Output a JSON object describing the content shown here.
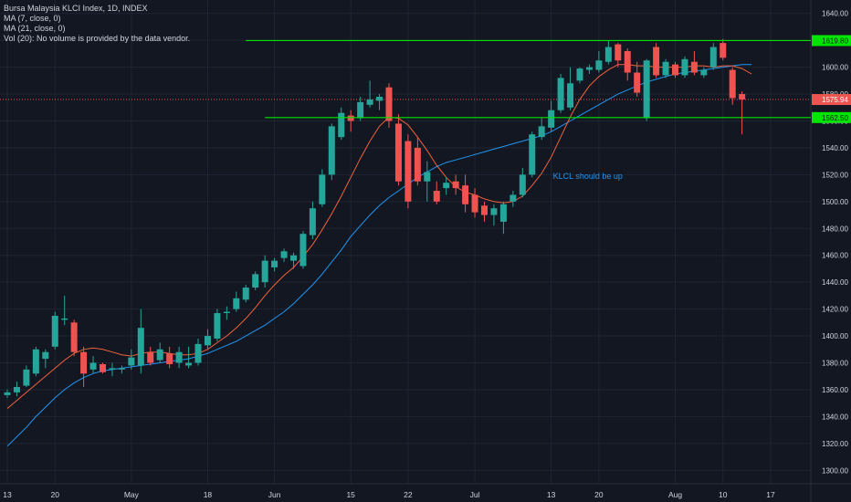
{
  "legend": {
    "title": "Bursa Malaysia KLCI Index, 1D, INDEX",
    "ma7": "MA (7, close, 0)",
    "ma21": "MA (21, close, 0)",
    "vol": "Vol (20): No volume is provided by the data vendor."
  },
  "colors": {
    "background": "#131722",
    "grid": "#1f2433",
    "up": "#26a69a",
    "down": "#ef5350",
    "ma7": "#f0623c",
    "ma21": "#2196f3",
    "level": "#00e600",
    "last_price_line": "#ef5350",
    "axis_text": "#d1d4dc",
    "annotation": "#2196f3"
  },
  "chart_data": {
    "type": "candlestick",
    "title": "Bursa Malaysia KLCI Index, 1D, INDEX",
    "ylim": [
      1290,
      1650
    ],
    "y_ticks": [
      "1300.00",
      "1320.00",
      "1340.00",
      "1360.00",
      "1380.00",
      "1400.00",
      "1420.00",
      "1440.00",
      "1460.00",
      "1480.00",
      "1500.00",
      "1520.00",
      "1540.00",
      "1560.00",
      "1580.00",
      "1600.00",
      "1620.00",
      "1640.00"
    ],
    "x_tick_labels": [
      "13",
      "20",
      "May",
      "18",
      "Jun",
      "15",
      "22",
      "Jul",
      "13",
      "20",
      "Aug",
      "10",
      "17"
    ],
    "x_tick_index": [
      0,
      5,
      13,
      21,
      28,
      36,
      42,
      49,
      57,
      62,
      70,
      75,
      80
    ],
    "horizontal_levels": [
      {
        "value": 1619.8,
        "label": "1619.80",
        "start_index": 25
      },
      {
        "value": 1562.5,
        "label": "1562.50",
        "start_index": 27
      }
    ],
    "last_price": {
      "value": 1575.94,
      "label": "1575.94"
    },
    "annotation": {
      "text": "KLCL should be up",
      "index": 57,
      "value": 1517
    },
    "candles": [
      {
        "o": 1356,
        "h": 1360,
        "l": 1354,
        "c": 1358
      },
      {
        "o": 1358,
        "h": 1366,
        "l": 1355,
        "c": 1362
      },
      {
        "o": 1363,
        "h": 1378,
        "l": 1362,
        "c": 1375
      },
      {
        "o": 1372,
        "h": 1392,
        "l": 1370,
        "c": 1390
      },
      {
        "o": 1383,
        "h": 1390,
        "l": 1376,
        "c": 1388
      },
      {
        "o": 1392,
        "h": 1418,
        "l": 1390,
        "c": 1415
      },
      {
        "o": 1412,
        "h": 1430,
        "l": 1408,
        "c": 1413
      },
      {
        "o": 1410,
        "h": 1412,
        "l": 1385,
        "c": 1388
      },
      {
        "o": 1388,
        "h": 1392,
        "l": 1362,
        "c": 1372
      },
      {
        "o": 1375,
        "h": 1385,
        "l": 1372,
        "c": 1380
      },
      {
        "o": 1379,
        "h": 1380,
        "l": 1372,
        "c": 1373
      },
      {
        "o": 1375,
        "h": 1380,
        "l": 1370,
        "c": 1376
      },
      {
        "o": 1375,
        "h": 1378,
        "l": 1372,
        "c": 1376
      },
      {
        "o": 1378,
        "h": 1390,
        "l": 1375,
        "c": 1384
      },
      {
        "o": 1378,
        "h": 1420,
        "l": 1372,
        "c": 1406
      },
      {
        "o": 1388,
        "h": 1392,
        "l": 1378,
        "c": 1380
      },
      {
        "o": 1382,
        "h": 1395,
        "l": 1380,
        "c": 1390
      },
      {
        "o": 1387,
        "h": 1392,
        "l": 1376,
        "c": 1379
      },
      {
        "o": 1380,
        "h": 1392,
        "l": 1376,
        "c": 1388
      },
      {
        "o": 1378,
        "h": 1392,
        "l": 1376,
        "c": 1380
      },
      {
        "o": 1380,
        "h": 1398,
        "l": 1378,
        "c": 1394
      },
      {
        "o": 1393,
        "h": 1405,
        "l": 1390,
        "c": 1400
      },
      {
        "o": 1398,
        "h": 1420,
        "l": 1396,
        "c": 1417
      },
      {
        "o": 1417,
        "h": 1422,
        "l": 1412,
        "c": 1418
      },
      {
        "o": 1420,
        "h": 1433,
        "l": 1418,
        "c": 1428
      },
      {
        "o": 1427,
        "h": 1438,
        "l": 1425,
        "c": 1436
      },
      {
        "o": 1436,
        "h": 1448,
        "l": 1434,
        "c": 1446
      },
      {
        "o": 1440,
        "h": 1460,
        "l": 1436,
        "c": 1456
      },
      {
        "o": 1451,
        "h": 1458,
        "l": 1448,
        "c": 1456
      },
      {
        "o": 1458,
        "h": 1465,
        "l": 1455,
        "c": 1463
      },
      {
        "o": 1456,
        "h": 1462,
        "l": 1450,
        "c": 1460
      },
      {
        "o": 1452,
        "h": 1478,
        "l": 1450,
        "c": 1476
      },
      {
        "o": 1475,
        "h": 1500,
        "l": 1472,
        "c": 1495
      },
      {
        "o": 1498,
        "h": 1524,
        "l": 1496,
        "c": 1520
      },
      {
        "o": 1520,
        "h": 1558,
        "l": 1516,
        "c": 1556
      },
      {
        "o": 1548,
        "h": 1570,
        "l": 1546,
        "c": 1566
      },
      {
        "o": 1564,
        "h": 1568,
        "l": 1552,
        "c": 1560
      },
      {
        "o": 1562,
        "h": 1578,
        "l": 1560,
        "c": 1574
      },
      {
        "o": 1572,
        "h": 1590,
        "l": 1570,
        "c": 1576
      },
      {
        "o": 1575,
        "h": 1580,
        "l": 1568,
        "c": 1578
      },
      {
        "o": 1585,
        "h": 1588,
        "l": 1555,
        "c": 1560
      },
      {
        "o": 1558,
        "h": 1565,
        "l": 1512,
        "c": 1515
      },
      {
        "o": 1545,
        "h": 1550,
        "l": 1495,
        "c": 1500
      },
      {
        "o": 1540,
        "h": 1548,
        "l": 1512,
        "c": 1515
      },
      {
        "o": 1515,
        "h": 1530,
        "l": 1500,
        "c": 1522
      },
      {
        "o": 1508,
        "h": 1515,
        "l": 1498,
        "c": 1500
      },
      {
        "o": 1510,
        "h": 1518,
        "l": 1505,
        "c": 1514
      },
      {
        "o": 1515,
        "h": 1520,
        "l": 1505,
        "c": 1510
      },
      {
        "o": 1512,
        "h": 1520,
        "l": 1492,
        "c": 1498
      },
      {
        "o": 1505,
        "h": 1510,
        "l": 1488,
        "c": 1492
      },
      {
        "o": 1497,
        "h": 1500,
        "l": 1485,
        "c": 1490
      },
      {
        "o": 1490,
        "h": 1498,
        "l": 1482,
        "c": 1495
      },
      {
        "o": 1485,
        "h": 1500,
        "l": 1476,
        "c": 1498
      },
      {
        "o": 1500,
        "h": 1508,
        "l": 1496,
        "c": 1505
      },
      {
        "o": 1505,
        "h": 1525,
        "l": 1503,
        "c": 1520
      },
      {
        "o": 1520,
        "h": 1552,
        "l": 1518,
        "c": 1550
      },
      {
        "o": 1548,
        "h": 1562,
        "l": 1546,
        "c": 1556
      },
      {
        "o": 1555,
        "h": 1575,
        "l": 1552,
        "c": 1568
      },
      {
        "o": 1568,
        "h": 1595,
        "l": 1566,
        "c": 1592
      },
      {
        "o": 1570,
        "h": 1600,
        "l": 1568,
        "c": 1588
      },
      {
        "o": 1590,
        "h": 1600,
        "l": 1588,
        "c": 1599
      },
      {
        "o": 1598,
        "h": 1602,
        "l": 1595,
        "c": 1600
      },
      {
        "o": 1598,
        "h": 1612,
        "l": 1596,
        "c": 1605
      },
      {
        "o": 1604,
        "h": 1620,
        "l": 1602,
        "c": 1615
      },
      {
        "o": 1617,
        "h": 1618,
        "l": 1600,
        "c": 1605
      },
      {
        "o": 1612,
        "h": 1614,
        "l": 1590,
        "c": 1596
      },
      {
        "o": 1596,
        "h": 1604,
        "l": 1578,
        "c": 1581
      },
      {
        "o": 1562,
        "h": 1606,
        "l": 1560,
        "c": 1605
      },
      {
        "o": 1615,
        "h": 1618,
        "l": 1592,
        "c": 1594
      },
      {
        "o": 1594,
        "h": 1606,
        "l": 1592,
        "c": 1604
      },
      {
        "o": 1602,
        "h": 1604,
        "l": 1592,
        "c": 1594
      },
      {
        "o": 1594,
        "h": 1608,
        "l": 1592,
        "c": 1606
      },
      {
        "o": 1604,
        "h": 1612,
        "l": 1594,
        "c": 1596
      },
      {
        "o": 1594,
        "h": 1600,
        "l": 1592,
        "c": 1598
      },
      {
        "o": 1600,
        "h": 1618,
        "l": 1598,
        "c": 1615
      },
      {
        "o": 1618,
        "h": 1621,
        "l": 1605,
        "c": 1607
      },
      {
        "o": 1598,
        "h": 1600,
        "l": 1572,
        "c": 1577
      },
      {
        "o": 1580,
        "h": 1582,
        "l": 1550,
        "c": 1576
      }
    ],
    "ma7": [
      1346,
      1352,
      1358,
      1364,
      1370,
      1376,
      1382,
      1387,
      1390,
      1391,
      1390,
      1388,
      1386,
      1385,
      1387,
      1388,
      1388,
      1387,
      1386,
      1386,
      1387,
      1390,
      1395,
      1400,
      1406,
      1413,
      1421,
      1430,
      1438,
      1445,
      1451,
      1459,
      1468,
      1479,
      1491,
      1504,
      1518,
      1532,
      1545,
      1556,
      1563,
      1562,
      1557,
      1548,
      1538,
      1527,
      1518,
      1511,
      1507,
      1505,
      1502,
      1500,
      1499,
      1500,
      1504,
      1512,
      1521,
      1533,
      1548,
      1563,
      1576,
      1586,
      1593,
      1598,
      1602,
      1602,
      1601,
      1601,
      1600,
      1600,
      1600,
      1600,
      1601,
      1601,
      1600,
      1601,
      1601,
      1599,
      1595
    ],
    "ma21": [
      1318,
      1325,
      1332,
      1340,
      1347,
      1354,
      1360,
      1365,
      1369,
      1372,
      1374,
      1375,
      1376,
      1377,
      1378,
      1379,
      1380,
      1381,
      1382,
      1383,
      1385,
      1387,
      1390,
      1393,
      1396,
      1400,
      1404,
      1408,
      1413,
      1418,
      1424,
      1431,
      1438,
      1446,
      1455,
      1464,
      1474,
      1482,
      1490,
      1497,
      1503,
      1508,
      1513,
      1518,
      1522,
      1526,
      1529,
      1531,
      1533,
      1535,
      1537,
      1539,
      1541,
      1543,
      1545,
      1547,
      1549,
      1552,
      1556,
      1560,
      1564,
      1568,
      1572,
      1576,
      1580,
      1583,
      1586,
      1589,
      1591,
      1593,
      1595,
      1596,
      1597,
      1598,
      1599,
      1600,
      1601,
      1602,
      1602
    ]
  }
}
